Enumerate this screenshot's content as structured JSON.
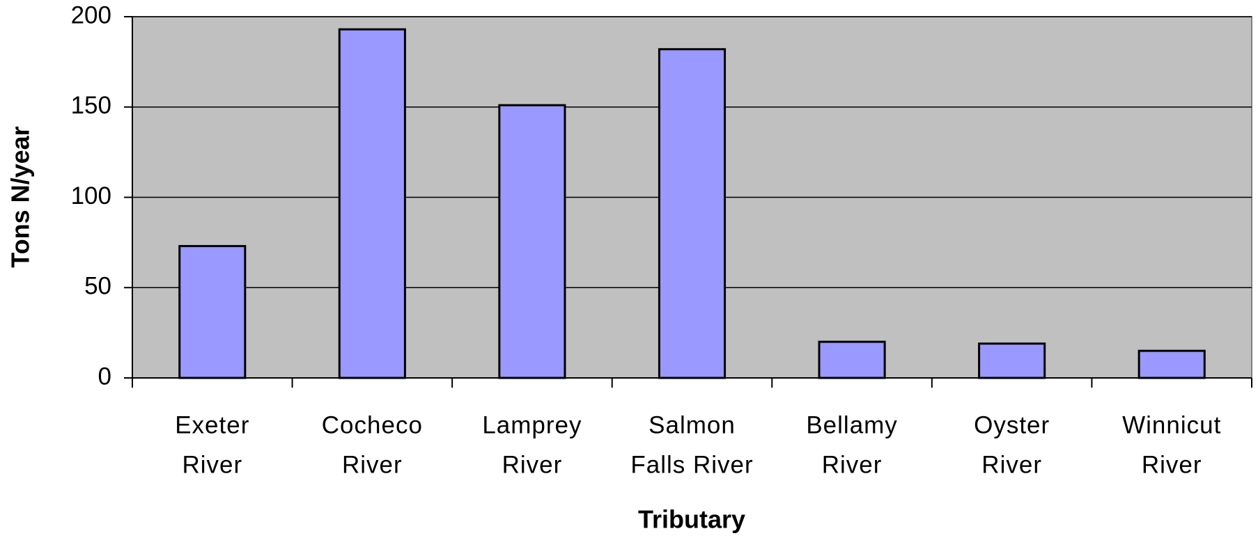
{
  "chart_data": {
    "type": "bar",
    "x_label": "Tributary",
    "y_label": "Tons N/year",
    "categories": [
      [
        "Exeter",
        "River"
      ],
      [
        "Cocheco",
        "River"
      ],
      [
        "Lamprey",
        "River"
      ],
      [
        "Salmon",
        "Falls River"
      ],
      [
        "Bellamy",
        "River"
      ],
      [
        "Oyster",
        "River"
      ],
      [
        "Winnicut",
        "River"
      ]
    ],
    "values": [
      73,
      193,
      151,
      182,
      20,
      19,
      15
    ],
    "color": "#9999ff",
    "ylim": [
      0,
      200
    ],
    "yticks": [
      0,
      50,
      100,
      150,
      200
    ],
    "grid": true
  }
}
